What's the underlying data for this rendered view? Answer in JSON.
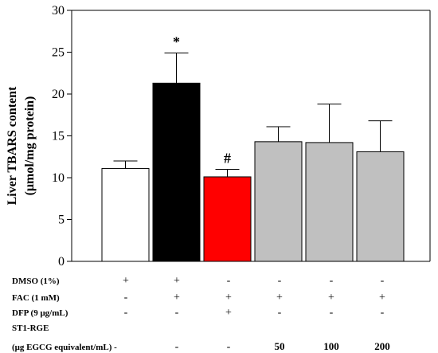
{
  "chart_data": {
    "type": "bar",
    "ylabel_line1": "Liver TBARS content",
    "ylabel_line2": "(μmol/mg protein)",
    "ylim": [
      0,
      30
    ],
    "yticks": [
      0,
      5,
      10,
      15,
      20,
      25,
      30
    ],
    "values": [
      11.1,
      21.3,
      10.1,
      14.3,
      14.2,
      13.1
    ],
    "errors": [
      0.9,
      3.6,
      0.9,
      1.8,
      4.6,
      3.7
    ],
    "colors": [
      "#ffffff",
      "#000000",
      "#ff0000",
      "#c0c0c0",
      "#c0c0c0",
      "#c0c0c0"
    ],
    "annotations": [
      "",
      "*",
      "#",
      "",
      "",
      ""
    ],
    "conditions": [
      {
        "label": "DMSO (1%)",
        "values": [
          "+",
          "+",
          "-",
          "-",
          "-",
          "-"
        ]
      },
      {
        "label": "FAC (1 mM)",
        "values": [
          "-",
          "+",
          "+",
          "+",
          "+",
          "+"
        ]
      },
      {
        "label": "DFP (9 μg/mL)",
        "values": [
          "-",
          "-",
          "+",
          "-",
          "-",
          "-"
        ]
      },
      {
        "label": "ST1-RGE",
        "values": [
          "",
          "",
          "",
          "",
          "",
          ""
        ]
      },
      {
        "label": "(μg EGCG equivalent/mL) -",
        "values": [
          "",
          "-",
          "-",
          "50",
          "100",
          "200"
        ]
      }
    ]
  }
}
